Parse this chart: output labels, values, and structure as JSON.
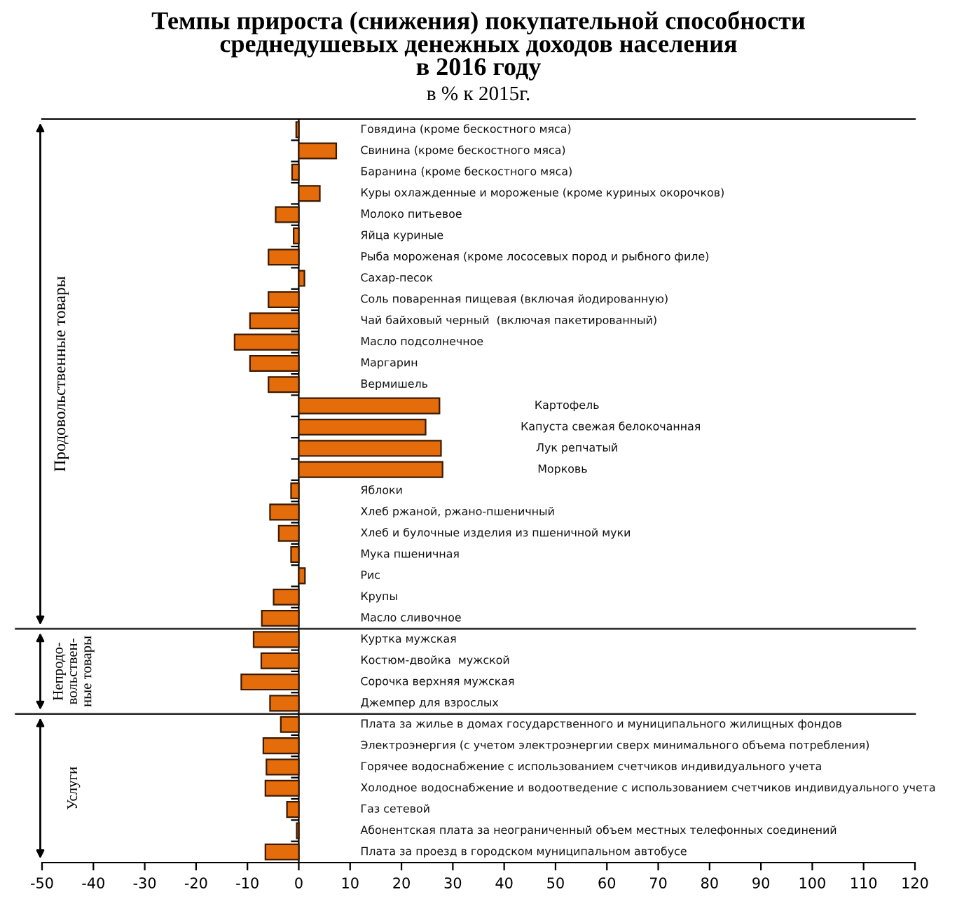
{
  "chart_data": {
    "type": "bar",
    "orientation": "horizontal",
    "title": "Темпы прироста (снижения) покупательной способности\nсреднедушевых денежных доходов населения\nв 2016 году",
    "subtitle": "в % к 2015г.",
    "categories": [
      "Говядина (кроме бескостного мяса)",
      "Свинина (кроме бескостного мяса)",
      "Баранина (кроме бескостного мяса)",
      "Куры охлажденные и мороженые (кроме куриных окорочков)",
      "Молоко питьевое",
      "Яйца куриные",
      "Рыба мороженая (кроме лососевых пород и рыбного филе)",
      "Сахар-песок",
      "Соль поваренная пищевая (включая йодированную)",
      "Чай байховый черный  (включая пакетированный)",
      "Масло подсолнечное",
      "Маргарин",
      "Вермишель",
      "Картофель",
      "Капуста свежая белокочанная",
      "Лук репчатый",
      "Морковь",
      "Яблоки",
      "Хлеб ржаной, ржано-пшеничный",
      "Хлеб и булочные изделия из пшеничной муки",
      "Мука пшеничная",
      "Рис",
      "Крупы",
      "Масло сливочное",
      "Куртка мужская",
      "Костюм-двойка  мужской",
      "Сорочка верхняя мужская",
      "Джемпер для взрослых",
      "Плата за жилье в домах государственного и муниципального жилищных фондов",
      "Электроэнергия (с учетом электроэнергии сверх минимального объема потребления)",
      "Горячее водоснабжение с использованием счетчиков индивидуального учета",
      "Холодное водоснабжение и водоотведение с использованием счетчиков индивидуального учета",
      "Газ сетевой",
      "Абонентская плата за неограниченный объем местных телефонных соединений",
      "Плата за проезд в городском муниципальном автобусе"
    ],
    "values": [
      -0.5,
      7.3,
      -1.3,
      4.1,
      -4.5,
      -1.0,
      -5.9,
      1.1,
      -5.9,
      -9.5,
      -12.5,
      -9.5,
      -5.9,
      27.4,
      24.7,
      27.7,
      28.0,
      -1.5,
      -5.6,
      -3.9,
      -1.5,
      1.2,
      -4.9,
      -7.2,
      -8.8,
      -7.3,
      -11.2,
      -5.6,
      -3.5,
      -6.9,
      -6.3,
      -6.5,
      -2.3,
      -0.4,
      -6.5
    ],
    "color": "#e46c0a",
    "xlim": [
      -50,
      120
    ],
    "xticks": [
      -50,
      -40,
      -30,
      -20,
      -10,
      0,
      10,
      20,
      30,
      40,
      50,
      60,
      70,
      80,
      90,
      100,
      110,
      120
    ],
    "tick_labels": "x",
    "annotations": [
      "Продовольственные товары",
      "Непродо-\nвольствен-\nные товары",
      "Услуги"
    ]
  }
}
